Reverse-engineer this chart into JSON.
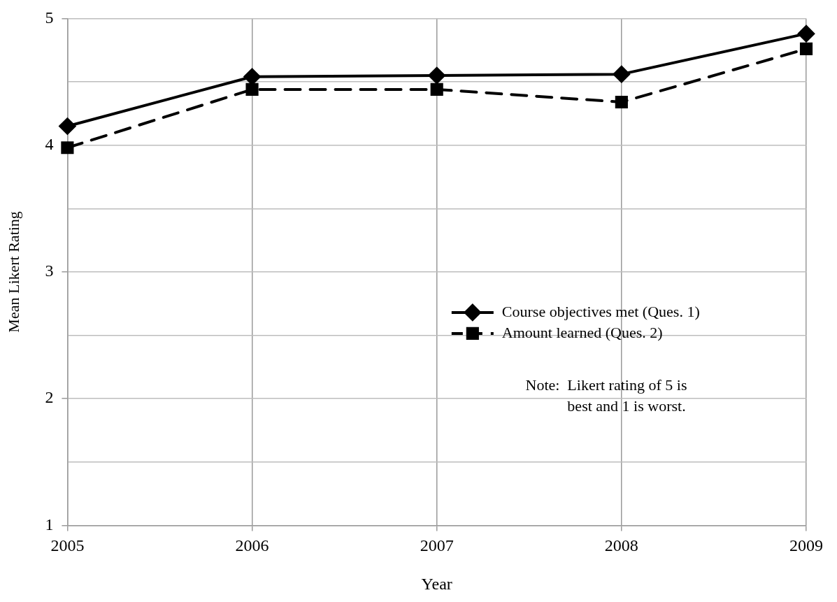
{
  "chart_data": {
    "type": "line",
    "xlabel": "Year",
    "ylabel": "Mean Likert Rating",
    "categories": [
      "2005",
      "2006",
      "2007",
      "2008",
      "2009"
    ],
    "series": [
      {
        "name": "Course objectives met (Ques. 1)",
        "color": "#000000",
        "marker": "diamond",
        "line_style": "solid",
        "values": [
          4.15,
          4.54,
          4.55,
          4.56,
          4.88
        ]
      },
      {
        "name": "Amount learned (Ques. 2)",
        "color": "#000000",
        "marker": "square",
        "line_style": "dashed",
        "values": [
          3.98,
          4.44,
          4.44,
          4.34,
          4.76
        ]
      }
    ],
    "ylim": [
      1,
      5
    ],
    "yticks": [
      1,
      {
        "value": 1.5,
        "label": null
      },
      2,
      {
        "value": 2.5,
        "label": null
      },
      3,
      {
        "value": 3.5,
        "label": null
      },
      4,
      {
        "value": 4.5,
        "label": null
      },
      5
    ],
    "grid": true,
    "legend": "right",
    "annotations": [
      "Note:  Likert rating of 5 is best and 1 is worst."
    ]
  }
}
